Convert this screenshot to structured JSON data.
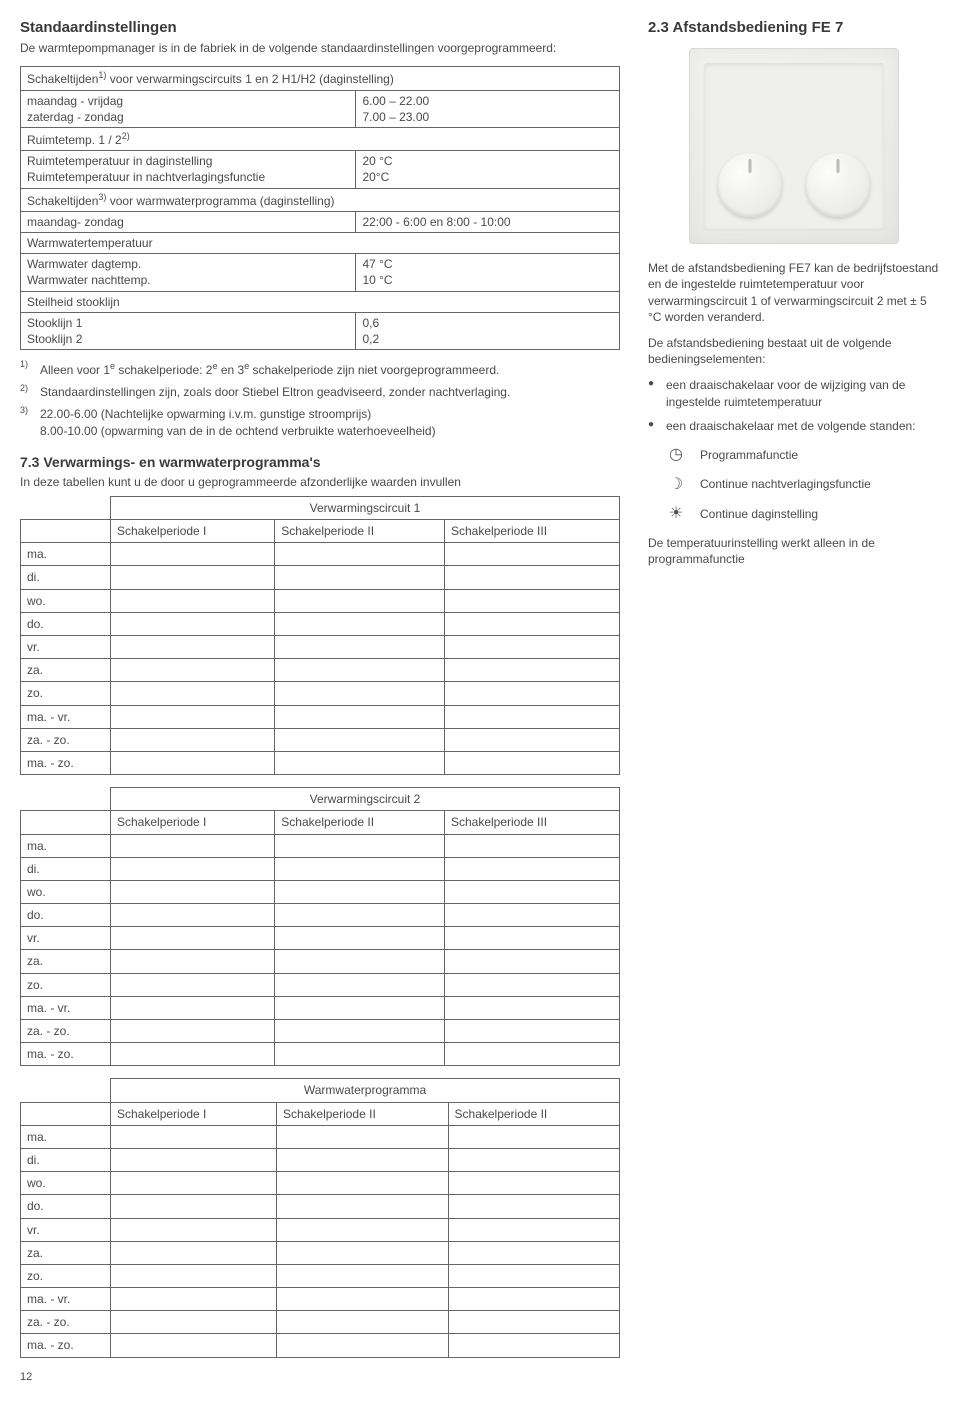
{
  "left": {
    "title": "Standaardinstellingen",
    "intro": "De warmtepompmanager is in de fabriek in de volgende standaardinstellingen voorgeprogrammeerd:",
    "settings_rows": [
      {
        "type": "header",
        "text": "Schakeltijden<sup>1)</sup> voor verwarmingscircuits 1 en 2 H1/H2 (daginstelling)"
      },
      {
        "type": "pair",
        "label": "maandag - vrijdag",
        "value": "6.00 – 22.00"
      },
      {
        "type": "pair",
        "label": "zaterdag - zondag",
        "value": "7.00 – 23.00"
      },
      {
        "type": "header",
        "text": "Ruimtetemp. 1 / 2<sup>2)</sup>"
      },
      {
        "type": "pair",
        "label": "Ruimtetemperatuur in daginstelling",
        "value": "20 °C"
      },
      {
        "type": "pair",
        "label": "Ruimtetemperatuur in nachtverlagingsfunctie",
        "value": "20°C"
      },
      {
        "type": "header",
        "text": "Schakeltijden<sup>3)</sup> voor warmwaterprogramma (daginstelling)"
      },
      {
        "type": "pair",
        "label": "maandag-  zondag",
        "value": "22:00 - 6:00 en 8:00 - 10:00"
      },
      {
        "type": "header",
        "text": "Warmwatertemperatuur"
      },
      {
        "type": "pair",
        "label": "Warmwater dagtemp.",
        "value": "47 °C"
      },
      {
        "type": "pair",
        "label": "Warmwater nachttemp.",
        "value": "10 °C"
      },
      {
        "type": "header",
        "text": "Steilheid stooklijn"
      },
      {
        "type": "pair",
        "label": "Stooklijn 1",
        "value": "0,6"
      },
      {
        "type": "pair",
        "label": "Stooklijn 2",
        "value": "0,2"
      }
    ],
    "footnotes": [
      {
        "num": "1)",
        "text": "Alleen voor 1<sup>e</sup> schakelperiode: 2<sup>e</sup> en 3<sup>e</sup> schakelperiode zijn niet voorgeprogrammeerd."
      },
      {
        "num": "2)",
        "text": "Standaardinstellingen zijn, zoals door Stiebel Eltron geadviseerd, zonder nachtverlaging."
      },
      {
        "num": "3)",
        "text": "22.00-6.00 (Nachtelijke opwarming i.v.m. gunstige stroomprijs)<br>8.00-10.00 (opwarming van de in de ochtend verbruikte waterhoeveelheid)"
      }
    ],
    "sec73_title": "7.3 Verwarmings- en warmwaterprogramma's",
    "sec73_intro": "In deze tabellen kunt u de door u geprogrammeerde afzonderlijke waarden invullen",
    "prog_tables": [
      {
        "title": "Verwarmingscircuit 1",
        "cols": [
          "Schakelperiode I",
          "Schakelperiode II",
          "Schakelperiode III"
        ]
      },
      {
        "title": "Verwarmingscircuit 2",
        "cols": [
          "Schakelperiode I",
          "Schakelperiode II",
          "Schakelperiode III"
        ]
      },
      {
        "title": "Warmwaterprogramma",
        "cols": [
          "Schakelperiode I",
          "Schakelperiode II",
          "Schakelperiode II"
        ]
      }
    ],
    "prog_rows": [
      "ma.",
      "di.",
      "wo.",
      "do.",
      "vr.",
      "za.",
      "zo.",
      "ma. - vr.",
      "za. - zo.",
      "ma. - zo."
    ],
    "page_number": "12"
  },
  "right": {
    "title": "2.3 Afstandsbediening FE 7",
    "para1": "Met de afstandsbediening FE7 kan de bedrijfstoestand en de ingestelde ruimtetemperatuur voor verwarmingscircuit 1 of verwarmingscircuit 2 met ± 5 °C worden veranderd.",
    "para2": "De afstandsbediening bestaat uit de volgende bedieningselementen:",
    "bullets": [
      "een draaischakelaar voor de wijziging van de ingestelde ruimtetemperatuur",
      "een draaischakelaar met de volgende standen:"
    ],
    "modes": [
      {
        "icon": "◷",
        "label": "Programmafunctie"
      },
      {
        "icon": "☽",
        "label": "Continue nachtverlagingsfunctie"
      },
      {
        "icon": "☀",
        "label": "Continue daginstelling"
      }
    ],
    "para3": "De temperatuurinstelling werkt alleen in de programmafunctie"
  }
}
